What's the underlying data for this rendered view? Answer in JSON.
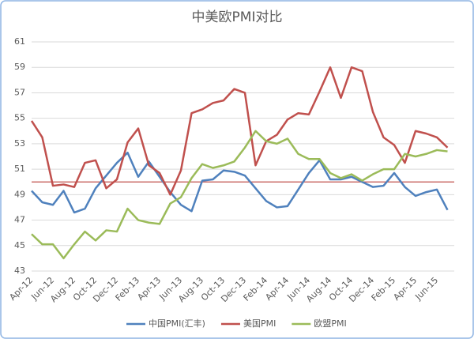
{
  "chart_data": {
    "type": "line",
    "title": "中美欧PMI对比",
    "categories": [
      "Apr-12",
      null,
      "Jun-12",
      null,
      "Aug-12",
      null,
      "Oct-12",
      null,
      "Dec-12",
      null,
      "Feb-13",
      null,
      "Apr-13",
      null,
      "Jun-13",
      null,
      "Aug-13",
      null,
      "Oct-13",
      null,
      "Dec-13",
      null,
      "Feb-14",
      null,
      "Apr-14",
      null,
      "Jun-14",
      null,
      "Aug-14",
      null,
      "Oct-14",
      null,
      "Dec-14",
      null,
      "Feb-15",
      null,
      "Apr-15",
      null,
      "Jun-15",
      null
    ],
    "series": [
      {
        "name": "中国PMI(汇丰)",
        "color": "#4f81bd",
        "values": [
          49.3,
          48.4,
          48.2,
          49.3,
          47.6,
          47.9,
          49.5,
          50.5,
          51.5,
          52.3,
          50.4,
          51.6,
          50.4,
          49.2,
          48.2,
          47.7,
          50.1,
          50.2,
          50.9,
          50.8,
          50.5,
          49.5,
          48.5,
          48.0,
          48.1,
          49.4,
          50.7,
          51.7,
          50.2,
          50.2,
          50.4,
          50.0,
          49.6,
          49.7,
          50.7,
          49.6,
          48.9,
          49.2,
          49.4,
          47.8
        ]
      },
      {
        "name": "美国PMI",
        "color": "#c0504d",
        "values": [
          54.8,
          53.5,
          49.7,
          49.8,
          49.6,
          51.5,
          51.7,
          49.5,
          50.2,
          53.1,
          54.2,
          51.3,
          50.7,
          49.0,
          50.9,
          55.4,
          55.7,
          56.2,
          56.4,
          57.3,
          57.0,
          51.3,
          53.2,
          53.7,
          54.9,
          55.4,
          55.3,
          57.1,
          59.0,
          56.6,
          59.0,
          58.7,
          55.5,
          53.5,
          52.9,
          51.5,
          54.0,
          53.8,
          53.5,
          52.7
        ]
      },
      {
        "name": "欧盟PMI",
        "color": "#9bbb59",
        "values": [
          45.9,
          45.1,
          45.1,
          44.0,
          45.1,
          46.1,
          45.4,
          46.2,
          46.1,
          47.9,
          47.0,
          46.8,
          46.7,
          48.3,
          48.8,
          50.3,
          51.4,
          51.1,
          51.3,
          51.6,
          52.7,
          54.0,
          53.2,
          53.0,
          53.4,
          52.2,
          51.8,
          51.8,
          50.7,
          50.3,
          50.6,
          50.1,
          50.6,
          51.0,
          51.0,
          52.2,
          52.0,
          52.2,
          52.5,
          52.4
        ]
      }
    ],
    "reference_line": {
      "value": 50,
      "color": "#c0504d"
    },
    "ylim": [
      43,
      61
    ],
    "yticks": [
      43,
      45,
      47,
      49,
      51,
      53,
      55,
      57,
      59,
      61
    ],
    "grid": true,
    "legend": "bottom"
  }
}
